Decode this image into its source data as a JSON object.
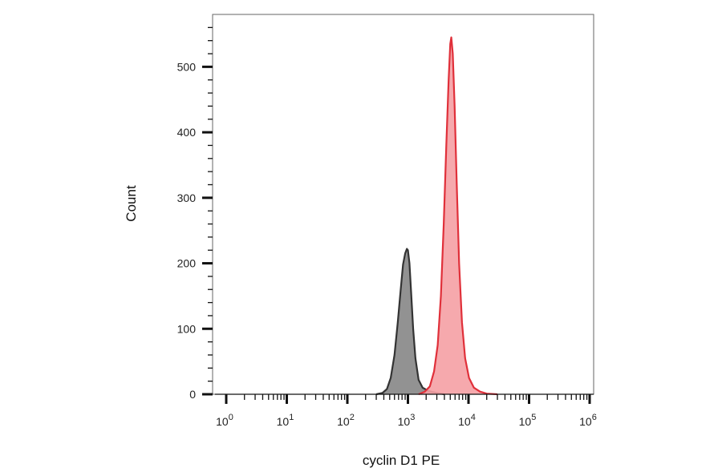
{
  "chart_data": {
    "type": "area",
    "title": "",
    "xlabel": "cyclin D1 PE",
    "ylabel": "Count",
    "x_scale": "log",
    "xlim": [
      1,
      1000000
    ],
    "ylim": [
      0,
      580
    ],
    "grid": false,
    "legend": "none",
    "x_tick_labels": [
      {
        "value": 1,
        "base": "10",
        "exp": "0"
      },
      {
        "value": 10,
        "base": "10",
        "exp": "1"
      },
      {
        "value": 100,
        "base": "10",
        "exp": "2"
      },
      {
        "value": 1000,
        "base": "10",
        "exp": "3"
      },
      {
        "value": 10000,
        "base": "10",
        "exp": "4"
      },
      {
        "value": 100000,
        "base": "10",
        "exp": "5"
      },
      {
        "value": 1000000,
        "base": "10",
        "exp": "6"
      }
    ],
    "y_ticks": [
      0,
      100,
      200,
      300,
      400,
      500
    ],
    "series": [
      {
        "color": "#333333",
        "fill": "#8c8c8c",
        "x": [
          300,
          380,
          450,
          520,
          600,
          680,
          760,
          830,
          900,
          960,
          1000,
          1060,
          1130,
          1220,
          1330,
          1500,
          1750,
          2200,
          3000,
          4000
        ],
        "y": [
          0,
          2,
          8,
          25,
          60,
          110,
          160,
          198,
          215,
          222,
          220,
          200,
          155,
          100,
          55,
          22,
          10,
          5,
          2,
          0
        ]
      },
      {
        "color": "#e0303a",
        "fill": "#f5a0a4",
        "x": [
          1500,
          1900,
          2300,
          2700,
          3100,
          3500,
          3900,
          4300,
          4700,
          5000,
          5200,
          5500,
          5900,
          6400,
          7000,
          7800,
          8800,
          10200,
          12300,
          15500,
          20000,
          30000
        ],
        "y": [
          0,
          4,
          12,
          35,
          75,
          150,
          260,
          380,
          480,
          535,
          545,
          520,
          440,
          320,
          200,
          110,
          55,
          25,
          10,
          4,
          1,
          0
        ]
      }
    ]
  }
}
